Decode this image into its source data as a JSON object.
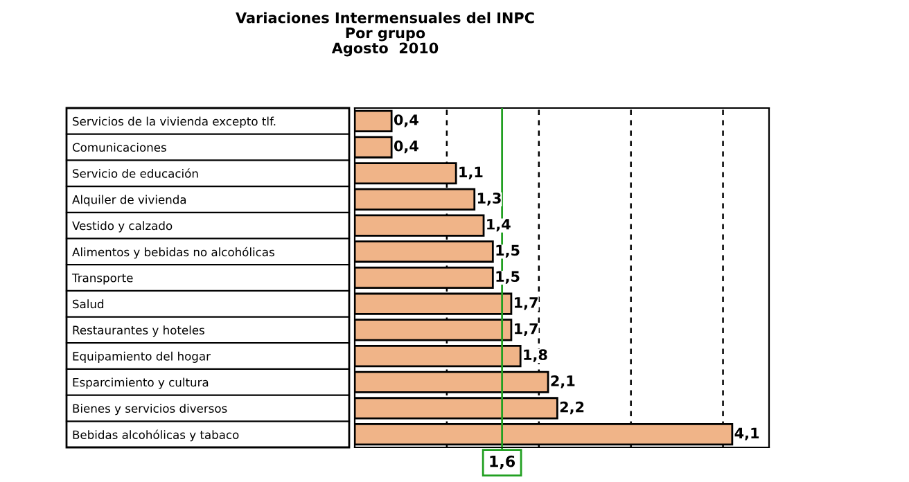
{
  "chart_data": {
    "type": "bar",
    "orientation": "horizontal",
    "title": "Variaciones Intermensuales del INPC\nPor grupo\nAgosto  2010",
    "categories": [
      "Servicios de la vivienda excepto tlf.",
      "Comunicaciones",
      "Servicio de educación",
      "Alquiler de vivienda",
      "Vestido y calzado",
      "Alimentos y bebidas no alcohólicas",
      "Transporte",
      "Salud",
      "Restaurantes y hoteles",
      "Equipamiento del hogar",
      "Esparcimiento y cultura",
      "Bienes y servicios diversos",
      "Bebidas alcohólicas y tabaco"
    ],
    "values": [
      0.4,
      0.4,
      1.1,
      1.3,
      1.4,
      1.5,
      1.5,
      1.7,
      1.7,
      1.8,
      2.1,
      2.2,
      4.1
    ],
    "value_labels": [
      "0,4",
      "0,4",
      "1,1",
      "1,3",
      "1,4",
      "1,5",
      "1,5",
      "1,7",
      "1,7",
      "1,8",
      "2,1",
      "2,2",
      "4,1"
    ],
    "color": "#f0b488",
    "xlim": [
      0,
      4.5
    ],
    "xticks": [
      {
        "value": 1,
        "label": null
      },
      {
        "value": 2,
        "label": null
      },
      {
        "value": 3,
        "label": null
      },
      {
        "value": 4,
        "label": null
      }
    ],
    "grid": "x",
    "tick_labels": "y",
    "ref_lines": [
      {
        "axis": "x",
        "value": 1.6,
        "label": "1,6",
        "color": "#22a022"
      }
    ]
  }
}
